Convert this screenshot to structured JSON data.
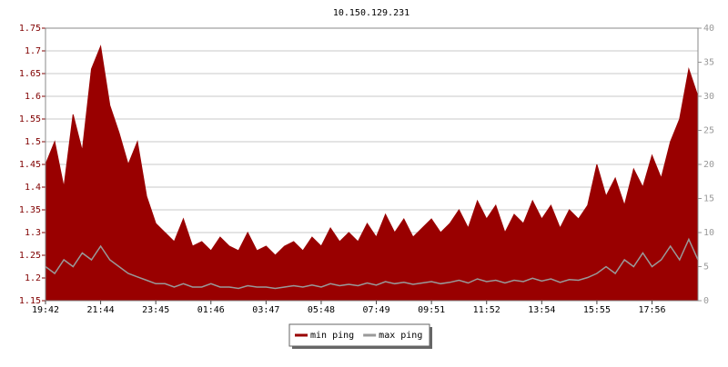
{
  "chart_data": {
    "type": "line",
    "title": "10.150.129.231",
    "categories": [
      "19:42",
      null,
      null,
      null,
      null,
      null,
      "21:44",
      null,
      null,
      null,
      null,
      null,
      "23:45",
      null,
      null,
      null,
      null,
      null,
      "01:46",
      null,
      null,
      null,
      null,
      null,
      "03:47",
      null,
      null,
      null,
      null,
      null,
      "05:48",
      null,
      null,
      null,
      null,
      null,
      "07:49",
      null,
      null,
      null,
      null,
      null,
      "09:51",
      null,
      null,
      null,
      null,
      null,
      "11:52",
      null,
      null,
      null,
      null,
      null,
      "13:54",
      null,
      null,
      null,
      null,
      null,
      "15:55",
      null,
      null,
      null,
      null,
      null,
      "17:56",
      null,
      null,
      null,
      null,
      null
    ],
    "series": [
      {
        "name": "min ping",
        "color": "#990000",
        "style": "area",
        "values": [
          1.45,
          1.5,
          1.4,
          1.56,
          1.48,
          1.66,
          1.71,
          1.58,
          1.52,
          1.45,
          1.5,
          1.38,
          1.32,
          1.3,
          1.28,
          1.33,
          1.27,
          1.28,
          1.26,
          1.29,
          1.27,
          1.26,
          1.3,
          1.26,
          1.27,
          1.25,
          1.27,
          1.28,
          1.26,
          1.29,
          1.27,
          1.31,
          1.28,
          1.3,
          1.28,
          1.32,
          1.29,
          1.34,
          1.3,
          1.33,
          1.29,
          1.31,
          1.33,
          1.3,
          1.32,
          1.35,
          1.31,
          1.37,
          1.33,
          1.36,
          1.3,
          1.34,
          1.32,
          1.37,
          1.33,
          1.36,
          1.31,
          1.35,
          1.33,
          1.36,
          1.45,
          1.38,
          1.42,
          1.36,
          1.44,
          1.4,
          1.47,
          1.42,
          1.5,
          1.55,
          1.66,
          1.6
        ]
      },
      {
        "name": "max ping",
        "color": "#999999",
        "style": "line",
        "axis": "y2",
        "values": [
          5,
          4,
          6,
          5,
          7,
          6,
          8,
          6,
          5,
          4,
          3.5,
          3,
          2.5,
          2.5,
          2,
          2.5,
          2,
          2,
          2.5,
          2,
          2,
          1.8,
          2.2,
          2,
          2,
          1.8,
          2,
          2.2,
          2,
          2.3,
          2,
          2.5,
          2.2,
          2.4,
          2.2,
          2.6,
          2.3,
          2.8,
          2.5,
          2.7,
          2.4,
          2.6,
          2.8,
          2.5,
          2.7,
          3,
          2.6,
          3.2,
          2.8,
          3,
          2.6,
          3,
          2.8,
          3.3,
          2.9,
          3.2,
          2.7,
          3.1,
          3,
          3.4,
          4,
          5,
          4,
          6,
          5,
          7,
          5,
          6,
          8,
          6,
          9,
          6
        ]
      }
    ],
    "ylim": [
      1.15,
      1.75
    ],
    "yticks": [
      1.15,
      1.2,
      1.25,
      1.3,
      1.35,
      1.4,
      1.45,
      1.5,
      1.55,
      1.6,
      1.65,
      1.7,
      1.75
    ],
    "y2lim": [
      0,
      40
    ],
    "y2ticks": [
      0,
      5,
      10,
      15,
      20,
      25,
      30,
      35,
      40
    ],
    "grid": true
  }
}
